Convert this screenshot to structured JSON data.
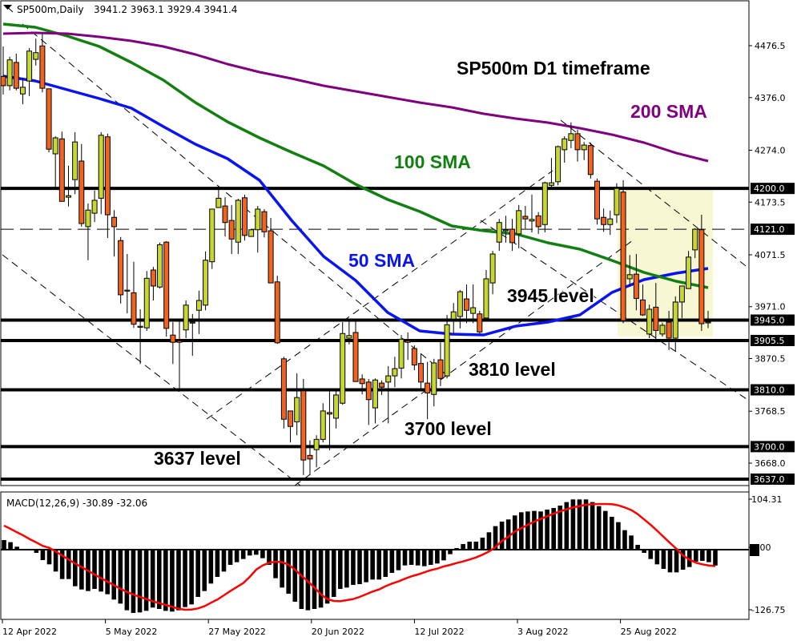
{
  "header": {
    "symbol": "SP500m,Daily",
    "ohlc": "3941.2 3963.1 3929.4 3941.4"
  },
  "annotations": {
    "title": "SP500m D1 timeframe",
    "sma200": "200 SMA",
    "sma100": "100 SMA",
    "sma50": "50 SMA",
    "level3945": "3945 level",
    "level3810": "3810 level",
    "level3700": "3700 level",
    "level3637": "3637 level"
  },
  "colors": {
    "bull": "#c8d632",
    "bear": "#f0641e",
    "sma50": "#0a14f0",
    "sma100": "#118011",
    "sma200": "#800080",
    "signal": "#ff0000",
    "highlight": "#f7f7d4"
  },
  "chart_data": [
    {
      "type": "candlestick",
      "ylim": [
        3626,
        4531
      ],
      "y_ticks": [
        "4476.5",
        "4376.0",
        "4274.0",
        "4173.5",
        "4071.5",
        "3971.0",
        "3870.5",
        "3768.5",
        "3668.0"
      ],
      "x_tick_labels": [
        "12 Apr 2022",
        "5 May 2022",
        "27 May 2022",
        "20 Jun 2022",
        "12 Jul 2022",
        "3 Aug 2022",
        "25 Aug 2022"
      ],
      "levels": [
        {
          "price": 4200.0,
          "label": "4200.0",
          "style": "solid"
        },
        {
          "price": 4121.0,
          "label": "4121.0",
          "style": "dashed"
        },
        {
          "price": 3945.0,
          "label": "3945.0",
          "style": "solid"
        },
        {
          "price": 3905.5,
          "label": "3905.5",
          "style": "solid"
        },
        {
          "price": 3810.0,
          "label": "3810.0",
          "style": "solid"
        },
        {
          "price": 3700.0,
          "label": "3700.0",
          "style": "solid"
        },
        {
          "price": 3637.0,
          "label": "3637.0",
          "style": "solid"
        }
      ],
      "highlight_zone": {
        "from": 3913,
        "to": 4200
      },
      "ohlc": [
        [
          4417,
          4475,
          4382,
          4399
        ],
        [
          4399,
          4455,
          4390,
          4449
        ],
        [
          4444,
          4461,
          4390,
          4394
        ],
        [
          4383,
          4413,
          4363,
          4396
        ],
        [
          4408,
          4472,
          4379,
          4466
        ],
        [
          4450,
          4490,
          4438,
          4463
        ],
        [
          4476,
          4500,
          4386,
          4394
        ],
        [
          4393,
          4393,
          4270,
          4276
        ],
        [
          4267,
          4301,
          4203,
          4298
        ],
        [
          4296,
          4310,
          4175,
          4175
        ],
        [
          4183,
          4244,
          4165,
          4186
        ],
        [
          4217,
          4309,
          4189,
          4290
        ],
        [
          4253,
          4286,
          4126,
          4132
        ],
        [
          4126,
          4171,
          4061,
          4158
        ],
        [
          4152,
          4196,
          4135,
          4177
        ],
        [
          4181,
          4309,
          4150,
          4303
        ],
        [
          4300,
          4306,
          4104,
          4149
        ],
        [
          4144,
          4158,
          4068,
          4126
        ],
        [
          4099,
          4106,
          3977,
          3994
        ],
        [
          4003,
          4073,
          3958,
          4003
        ],
        [
          3998,
          4058,
          3930,
          3937
        ],
        [
          3933,
          3966,
          3860,
          3933
        ],
        [
          3930,
          4040,
          3924,
          4026
        ],
        [
          4042,
          4048,
          3983,
          4011
        ],
        [
          4009,
          4095,
          4006,
          4091
        ],
        [
          4096,
          4098,
          3913,
          3929
        ],
        [
          3916,
          3941,
          3860,
          3902
        ],
        [
          3905,
          3942,
          3812,
          3902
        ],
        [
          3926,
          3983,
          3910,
          3974
        ],
        [
          3941,
          3957,
          3876,
          3941
        ],
        [
          3964,
          4002,
          3918,
          3983
        ],
        [
          3974,
          4078,
          3964,
          4061
        ],
        [
          4058,
          4160,
          4044,
          4160
        ],
        [
          4163,
          4205,
          4163,
          4181
        ],
        [
          4166,
          4183,
          4107,
          4134
        ],
        [
          4138,
          4168,
          4073,
          4102
        ],
        [
          4096,
          4180,
          4073,
          4177
        ],
        [
          4182,
          4188,
          4099,
          4109
        ],
        [
          4107,
          4120,
          4107,
          4120
        ],
        [
          4120,
          4166,
          4076,
          4160
        ],
        [
          4155,
          4160,
          4105,
          4116
        ],
        [
          4118,
          4143,
          4017,
          4017
        ],
        [
          4019,
          4031,
          3899,
          3901
        ],
        [
          3870,
          3874,
          3735,
          3753
        ],
        [
          3769,
          3769,
          3708,
          3739
        ],
        [
          3748,
          3842,
          3722,
          3795
        ],
        [
          3808,
          3831,
          3645,
          3674
        ],
        [
          3683,
          3712,
          3645,
          3676
        ],
        [
          3694,
          3722,
          3660,
          3714
        ],
        [
          3714,
          3784,
          3708,
          3769
        ],
        [
          3766,
          3808,
          3693,
          3763
        ],
        [
          3755,
          3808,
          3735,
          3800
        ],
        [
          3784,
          3941,
          3781,
          3919
        ],
        [
          3910,
          3945,
          3898,
          3915
        ],
        [
          3921,
          3948,
          3826,
          3826
        ],
        [
          3831,
          3840,
          3801,
          3822
        ],
        [
          3825,
          3831,
          3742,
          3791
        ],
        [
          3775,
          3832,
          3745,
          3829
        ],
        [
          3823,
          3828,
          3800,
          3815
        ],
        [
          3825,
          3856,
          3745,
          3837
        ],
        [
          3837,
          3874,
          3815,
          3851
        ],
        [
          3852,
          3916,
          3832,
          3908
        ],
        [
          3905,
          3921,
          3868,
          3902
        ],
        [
          3890,
          3896,
          3848,
          3858
        ],
        [
          3861,
          3879,
          3808,
          3825
        ],
        [
          3823,
          3864,
          3753,
          3804
        ],
        [
          3801,
          3870,
          3778,
          3862
        ],
        [
          3868,
          3902,
          3817,
          3832
        ],
        [
          3837,
          3955,
          3832,
          3936
        ],
        [
          3947,
          3978,
          3919,
          3961
        ],
        [
          3952,
          4003,
          3929,
          4000
        ],
        [
          3986,
          4014,
          3939,
          3964
        ],
        [
          3958,
          4014,
          3939,
          3969
        ],
        [
          3957,
          3963,
          3918,
          3922
        ],
        [
          3949,
          4042,
          3949,
          4025
        ],
        [
          4017,
          4079,
          3995,
          4073
        ],
        [
          4096,
          4141,
          4079,
          4134
        ],
        [
          4118,
          4147,
          4095,
          4120
        ],
        [
          4121,
          4141,
          4079,
          4095
        ],
        [
          4112,
          4168,
          4084,
          4157
        ],
        [
          4146,
          4166,
          4122,
          4141
        ],
        [
          4137,
          4188,
          4115,
          4140
        ],
        [
          4147,
          4154,
          4112,
          4126
        ],
        [
          4130,
          4213,
          4115,
          4211
        ],
        [
          4206,
          4259,
          4203,
          4211
        ],
        [
          4213,
          4283,
          4206,
          4281
        ],
        [
          4275,
          4301,
          4250,
          4296
        ],
        [
          4293,
          4328,
          4278,
          4306
        ],
        [
          4306,
          4314,
          4252,
          4275
        ],
        [
          4275,
          4290,
          4255,
          4284
        ],
        [
          4283,
          4289,
          4219,
          4227
        ],
        [
          4214,
          4219,
          4130,
          4141
        ],
        [
          4144,
          4161,
          4116,
          4130
        ],
        [
          4130,
          4157,
          4110,
          4141
        ],
        [
          4149,
          4210,
          4133,
          4200
        ],
        [
          4193,
          4216,
          3939,
          3944
        ],
        [
          4025,
          4071,
          4010,
          4033
        ],
        [
          4034,
          4073,
          3964,
          3987
        ],
        [
          3984,
          4014,
          3953,
          3955
        ],
        [
          3918,
          3975,
          3910,
          3966
        ],
        [
          3970,
          4017,
          3902,
          3925
        ],
        [
          3918,
          3940,
          3913,
          3935
        ],
        [
          3941,
          3963,
          3887,
          3910
        ],
        [
          3910,
          3991,
          3885,
          3980
        ],
        [
          3980,
          4011,
          3949,
          4011
        ],
        [
          4006,
          4079,
          4006,
          4067
        ],
        [
          4081,
          4123,
          4065,
          4121
        ],
        [
          4120,
          4149,
          3924,
          3938
        ],
        [
          3941.2,
          3963.1,
          3929.4,
          3941.4
        ]
      ],
      "series": [
        {
          "name": "50 SMA",
          "values": [
            4417.5,
            4408.2,
            4391.2,
            4374.1,
            4355.5,
            4319.8,
            4285.6,
            4257.7,
            4215.8,
            4138.2,
            4068.4,
            4021.8,
            3959.8,
            3924.1,
            3917.9,
            3916.3,
            3933.4,
            3941.1,
            3955.1,
            3998.6,
            4023.4,
            4035.8,
            4045.1
          ]
        },
        {
          "name": "100 SMA",
          "values": [
            4518.4,
            4512.2,
            4495.1,
            4474.9,
            4443.9,
            4409.8,
            4366.3,
            4329.1,
            4298.0,
            4270.1,
            4243.7,
            4208.0,
            4178.5,
            4155.3,
            4127.3,
            4118.0,
            4111.8,
            4094.7,
            4082.3,
            4060.6,
            4037.3,
            4020.3,
            4007.9
          ]
        },
        {
          "name": "200 SMA",
          "values": [
            4499.8,
            4501.3,
            4499.8,
            4493.6,
            4485.8,
            4474.9,
            4459.4,
            4440.8,
            4425.3,
            4412.9,
            4398.9,
            4388.0,
            4377.2,
            4366.3,
            4357.0,
            4344.6,
            4335.3,
            4327.5,
            4316.7,
            4304.3,
            4288.8,
            4268.7,
            4253.0
          ]
        }
      ]
    },
    {
      "type": "bar",
      "title": "MACD(12,26,9) -30.89 -32.06",
      "y_ticks": [
        "104.31",
        "0.00",
        "-126.75"
      ],
      "ylim": [
        -126.75,
        104.31
      ],
      "histogram": [
        18.7,
        14.6,
        5.7,
        0,
        0,
        -6.2,
        -20.3,
        -28.6,
        -42.6,
        -57.2,
        -57.2,
        -71.2,
        -77.5,
        -80.6,
        -76.4,
        -81.6,
        -86.8,
        -97.2,
        -105,
        -118,
        -123.2,
        -122.2,
        -119.1,
        -112.8,
        -115.4,
        -119.1,
        -120.6,
        -118,
        -111.8,
        -106.6,
        -92,
        -80.6,
        -66,
        -53,
        -42.6,
        -29.6,
        -24.4,
        -18.2,
        -11.4,
        -9.9,
        -16.6,
        -29.6,
        -55.6,
        -73.8,
        -85.8,
        -101.4,
        -115.4,
        -118,
        -115.4,
        -112.8,
        -105,
        -92,
        -76.4,
        -73.8,
        -68.6,
        -67.1,
        -63.4,
        -58.2,
        -58.2,
        -53,
        -45.2,
        -40,
        -30.7,
        -29.6,
        -30.7,
        -32.2,
        -29.6,
        -27,
        -20.8,
        -8.8,
        3.1,
        10.9,
        15.6,
        15.6,
        23.4,
        33.8,
        45.8,
        54.6,
        58.8,
        66.6,
        72.8,
        74.4,
        75.4,
        74.4,
        78,
        81.1,
        85.8,
        92.6,
        97.8,
        97.8,
        97.8,
        92.6,
        84.8,
        75.4,
        64,
        53.6,
        38,
        27.6,
        9.4,
        -6.2,
        -18.2,
        -28.6,
        -37.4,
        -44.2,
        -44.2,
        -39,
        -33.8,
        -23.4,
        -21.8,
        -24.4,
        -30.89
      ],
      "signal": [
        46.8,
        40.6,
        33.8,
        27.6,
        20.3,
        14,
        7.3,
        3.6,
        -3.6,
        -11.4,
        -19.2,
        -27,
        -33.8,
        -41.1,
        -48.4,
        -55.6,
        -62.4,
        -69.2,
        -75.9,
        -82.2,
        -87.4,
        -92,
        -96.2,
        -100.4,
        -104,
        -107.6,
        -111.3,
        -115,
        -117,
        -116.5,
        -114.4,
        -110.2,
        -103.5,
        -97.2,
        -88.9,
        -80.6,
        -72.8,
        -65,
        -53,
        -39,
        -30.7,
        -25.5,
        -23.4,
        -24.4,
        -29.1,
        -39,
        -50.4,
        -61.9,
        -73.8,
        -86.8,
        -96.2,
        -99.8,
        -100.4,
        -98.3,
        -96.2,
        -92,
        -86.8,
        -81.6,
        -77.5,
        -71.2,
        -66,
        -61.9,
        -56.7,
        -52,
        -48.4,
        -44.2,
        -40,
        -36.9,
        -32.8,
        -29.6,
        -26,
        -22.9,
        -19.2,
        -15.1,
        -9.9,
        -3.6,
        4.7,
        17.2,
        25,
        35.4,
        41.6,
        48.4,
        54.6,
        59.8,
        65,
        70.2,
        74.4,
        78.5,
        82.2,
        84.8,
        87.4,
        88.4,
        88.9,
        88.9,
        88.4,
        86.3,
        82.2,
        77,
        69.2,
        58.8,
        48.4,
        36.9,
        25,
        13,
        1.6,
        -11.4,
        -19.2,
        -25.5,
        -28.6,
        -30.7,
        -32.06
      ]
    }
  ]
}
